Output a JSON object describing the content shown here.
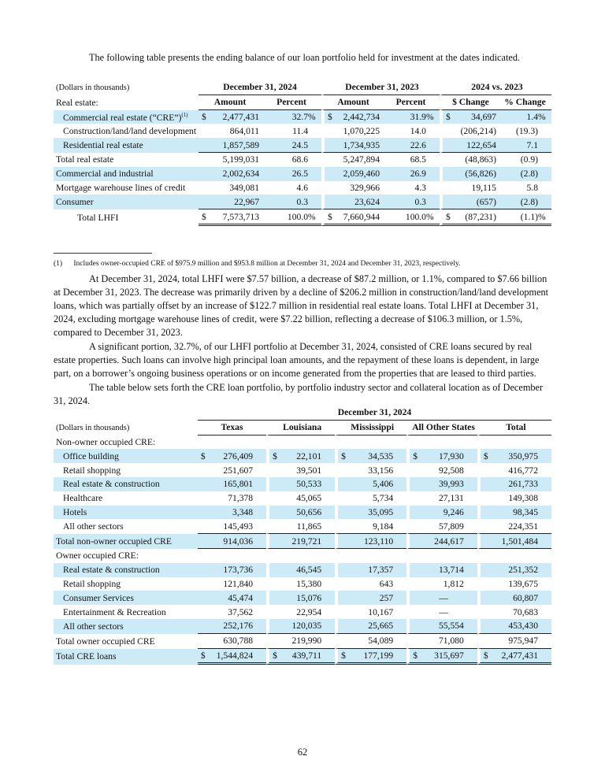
{
  "intro": "The following table presents the ending balance of our loan portfolio held for investment at the dates indicated.",
  "t1": {
    "units": "(Dollars in thousands)",
    "groups": [
      "December 31, 2024",
      "December 31, 2023",
      "2024 vs. 2023"
    ],
    "section": "Real estate:",
    "cols": [
      "Amount",
      "Percent",
      "Amount",
      "Percent",
      "$ Change",
      "% Change"
    ],
    "rows": [
      {
        "label": "Commercial real estate (“CRE”)",
        "sup": "(1)",
        "indent": 1,
        "shade": true,
        "dollar": true,
        "pct": true,
        "v": [
          "2,477,431",
          "32.7",
          "2,442,734",
          "31.9",
          "34,697",
          "1.4"
        ]
      },
      {
        "label": "Construction/land/land development",
        "indent": 1,
        "v": [
          "864,011",
          "11.4",
          "1,070,225",
          "14.0",
          "(206,214)",
          "(19.3)"
        ]
      },
      {
        "label": "Residential real estate",
        "indent": 1,
        "shade": true,
        "ul": true,
        "v": [
          "1,857,589",
          "24.5",
          "1,734,935",
          "22.6",
          "122,654",
          "7.1"
        ]
      },
      {
        "label": "Total real estate",
        "v": [
          "5,199,031",
          "68.6",
          "5,247,894",
          "68.5",
          "(48,863)",
          "(0.9)"
        ]
      },
      {
        "label": "Commercial and industrial",
        "shade": true,
        "v": [
          "2,002,634",
          "26.5",
          "2,059,460",
          "26.9",
          "(56,826)",
          "(2.8)"
        ]
      },
      {
        "label": "Mortgage warehouse lines of credit",
        "v": [
          "349,081",
          "4.6",
          "329,966",
          "4.3",
          "19,115",
          "5.8"
        ]
      },
      {
        "label": "Consumer",
        "shade": true,
        "ul": true,
        "v": [
          "22,967",
          "0.3",
          "23,624",
          "0.3",
          "(657)",
          "(2.8)"
        ]
      },
      {
        "label": "Total LHFI",
        "indent": 2,
        "dollar": true,
        "pct": true,
        "dul": true,
        "v": [
          "7,573,713",
          "100.0",
          "7,660,944",
          "100.0",
          "(87,231)",
          "(1.1)"
        ]
      }
    ],
    "dollar_sign": "$",
    "pct_sign": "%"
  },
  "footnote": {
    "marker": "(1)",
    "text": "Includes owner-occupied CRE of $975.9 million and $953.8 million at December 31, 2024 and December 31, 2023, respectively."
  },
  "para1": "At December 31, 2024, total LHFI were $7.57 billion, a decrease of $87.2 million, or 1.1%, compared to $7.66 billion at December 31, 2023. The decrease was primarily driven by a decline of $206.2 million in construction/land/land development loans, which was partially offset by an increase of $122.7 million in residential real estate loans. Total LHFI at December 31, 2024, excluding mortgage warehouse lines of credit, were $7.22 billion, reflecting a decrease of $106.3 million, or 1.5%, compared to December 31, 2023.",
  "para2": "A significant portion, 32.7%, of our LHFI portfolio at December 31, 2024, consisted of CRE loans secured by real estate properties. Such loans can involve high principal loan amounts, and the repayment of these loans is dependent, in large part, on a borrower’s ongoing business operations or on income generated from the properties that are leased to third parties.",
  "para3": "The table below sets forth the CRE loan portfolio, by portfolio industry sector and collateral location as of December 31, 2024.",
  "t2": {
    "group": "December 31, 2024",
    "units": "(Dollars in thousands)",
    "cols": [
      "Texas",
      "Louisiana",
      "Mississippi",
      "All Other States",
      "Total"
    ],
    "rows": [
      {
        "label": "Non-owner occupied CRE:",
        "header": true
      },
      {
        "label": "Office building",
        "indent": 1,
        "shade": true,
        "dollar": true,
        "v": [
          "276,409",
          "22,101",
          "34,535",
          "17,930",
          "350,975"
        ]
      },
      {
        "label": "Retail shopping",
        "indent": 1,
        "v": [
          "251,607",
          "39,501",
          "33,156",
          "92,508",
          "416,772"
        ]
      },
      {
        "label": "Real estate & construction",
        "indent": 1,
        "shade": true,
        "v": [
          "165,801",
          "50,533",
          "5,406",
          "39,993",
          "261,733"
        ]
      },
      {
        "label": "Healthcare",
        "indent": 1,
        "v": [
          "71,378",
          "45,065",
          "5,734",
          "27,131",
          "149,308"
        ]
      },
      {
        "label": "Hotels",
        "indent": 1,
        "shade": true,
        "v": [
          "3,348",
          "50,656",
          "35,095",
          "9,246",
          "98,345"
        ]
      },
      {
        "label": "All other sectors",
        "indent": 1,
        "ul": true,
        "v": [
          "145,493",
          "11,865",
          "9,184",
          "57,809",
          "224,351"
        ]
      },
      {
        "label": "Total non-owner occupied CRE",
        "shade": true,
        "ul": true,
        "v": [
          "914,036",
          "219,721",
          "123,110",
          "244,617",
          "1,501,484"
        ]
      },
      {
        "label": "Owner occupied CRE:",
        "header": true
      },
      {
        "label": "Real estate & construction",
        "indent": 1,
        "shade": true,
        "v": [
          "173,736",
          "46,545",
          "17,357",
          "13,714",
          "251,352"
        ]
      },
      {
        "label": "Retail shopping",
        "indent": 1,
        "v": [
          "121,840",
          "15,380",
          "643",
          "1,812",
          "139,675"
        ]
      },
      {
        "label": "Consumer Services",
        "indent": 1,
        "shade": true,
        "v": [
          "45,474",
          "15,076",
          "257",
          "—",
          "60,807"
        ]
      },
      {
        "label": "Entertainment & Recreation",
        "indent": 1,
        "v": [
          "37,562",
          "22,954",
          "10,167",
          "—",
          "70,683"
        ]
      },
      {
        "label": "All other sectors",
        "indent": 1,
        "shade": true,
        "ul": true,
        "v": [
          "252,176",
          "120,035",
          "25,665",
          "55,554",
          "453,430"
        ]
      },
      {
        "label": "Total owner occupied CRE",
        "ul": true,
        "v": [
          "630,788",
          "219,990",
          "54,089",
          "71,080",
          "975,947"
        ]
      },
      {
        "label": "Total CRE loans",
        "shade": true,
        "dollar": true,
        "dul": true,
        "v": [
          "1,544,824",
          "439,711",
          "177,199",
          "315,697",
          "2,477,431"
        ]
      }
    ],
    "dollar_sign": "$"
  },
  "page_number": "62"
}
